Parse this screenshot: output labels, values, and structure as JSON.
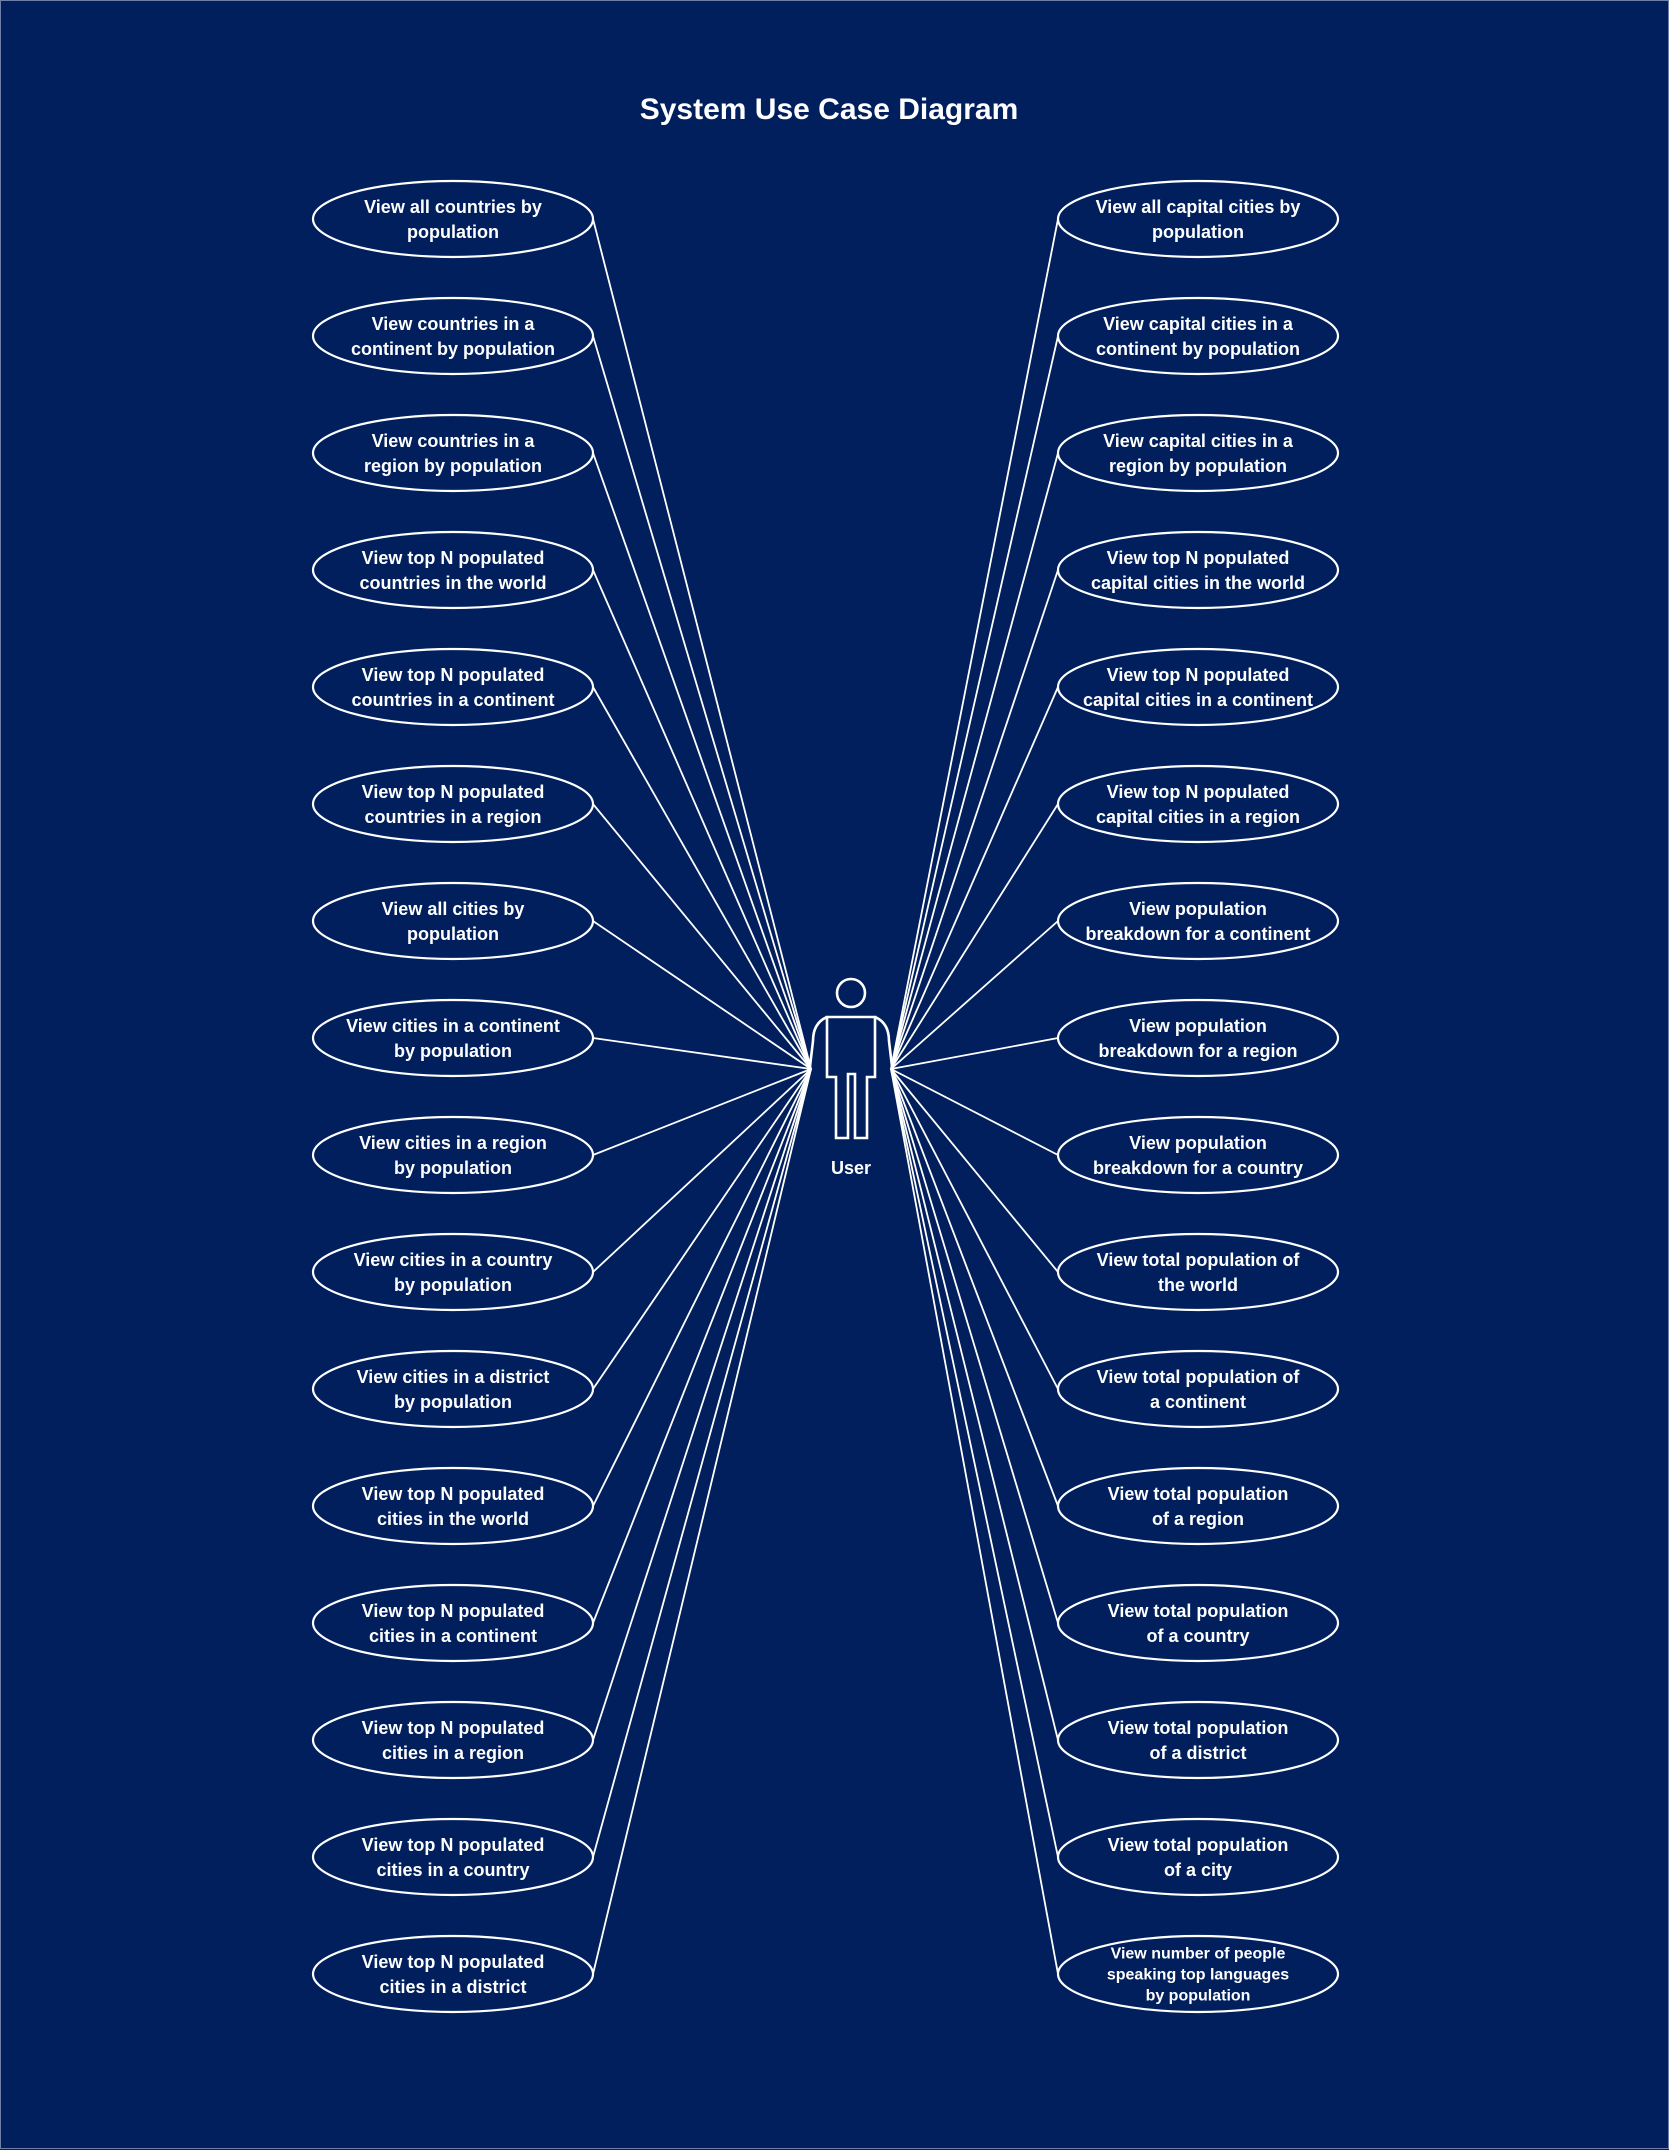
{
  "title": "System Use Case Diagram",
  "actor": {
    "label": "User",
    "icon": "stick-figure-icon"
  },
  "colors": {
    "background": "#001f5c",
    "foreground": "#ffffff"
  },
  "use_cases_left": [
    [
      "View all countries by",
      "population"
    ],
    [
      "View countries in a",
      "continent by population"
    ],
    [
      "View countries in a",
      "region by population"
    ],
    [
      "View top N populated",
      "countries in the world"
    ],
    [
      "View top N populated",
      "countries in a continent"
    ],
    [
      "View top N populated",
      "countries in a region"
    ],
    [
      "View all cities by",
      "population"
    ],
    [
      "View cities in a continent",
      "by population"
    ],
    [
      "View cities in a region",
      "by population"
    ],
    [
      "View cities in a country",
      "by population"
    ],
    [
      "View cities in a district",
      "by population"
    ],
    [
      "View top N populated",
      "cities in the world"
    ],
    [
      "View top N populated",
      "cities in a continent"
    ],
    [
      "View top N populated",
      "cities in a region"
    ],
    [
      "View top N populated",
      "cities in a country"
    ],
    [
      "View top N populated",
      "cities in a district"
    ]
  ],
  "use_cases_right": [
    [
      "View all capital cities by",
      "population"
    ],
    [
      "View capital cities in a",
      "continent by population"
    ],
    [
      "View capital cities in a",
      "region by population"
    ],
    [
      "View top N populated",
      "capital cities in the world"
    ],
    [
      "View top N populated",
      "capital cities in a continent"
    ],
    [
      "View top N populated",
      "capital cities in a region"
    ],
    [
      "View population",
      "breakdown for a continent"
    ],
    [
      "View population",
      "breakdown for a region"
    ],
    [
      "View population",
      "breakdown for a country"
    ],
    [
      "View total population of",
      "the world"
    ],
    [
      "View total population of",
      "a continent"
    ],
    [
      "View total population",
      "of a region"
    ],
    [
      "View total population",
      "of a country"
    ],
    [
      "View total population",
      "of a district"
    ],
    [
      "View total population",
      "of a city"
    ],
    [
      "View number of people",
      "speaking top languages",
      "by population"
    ]
  ]
}
